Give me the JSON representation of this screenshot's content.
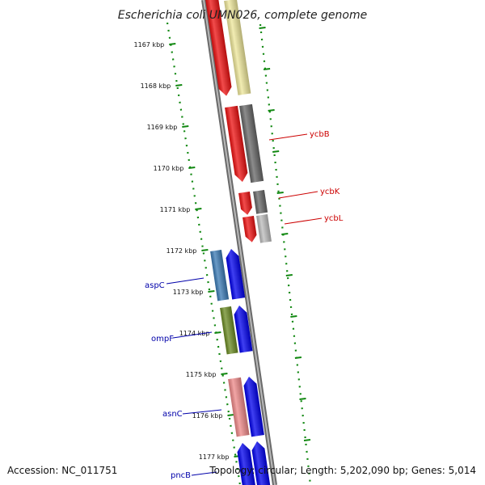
{
  "title": "Escherichia coli UMN026, complete genome",
  "footer": {
    "accession": "Accession: NC_011751",
    "topology": "Topology: circular; Length: 5,202,090 bp; Genes: 5,014"
  },
  "ticks": [
    "1167 kbp",
    "1168 kbp",
    "1169 kbp",
    "1170 kbp",
    "1171 kbp",
    "1172 kbp",
    "1173 kbp",
    "1174 kbp",
    "1175 kbp",
    "1176 kbp",
    "1177 kbp"
  ],
  "genes_right": [
    {
      "name": "ycbB",
      "color": "#cc0000"
    },
    {
      "name": "ycbK",
      "color": "#cc0000"
    },
    {
      "name": "ycbL",
      "color": "#cc0000"
    }
  ],
  "genes_left": [
    {
      "name": "aspC",
      "color": "#0000aa"
    },
    {
      "name": "ompF",
      "color": "#0000aa"
    },
    {
      "name": "asnC",
      "color": "#0000aa"
    },
    {
      "name": "pncB",
      "color": "#0000aa"
    }
  ],
  "colors": {
    "tick_line": "#118811",
    "backbone": "#888888",
    "red_gene": "#ee1111",
    "blue_gene": "#0000ee",
    "grey_gene": "#666666",
    "light_grey_gene": "#bbbbbb",
    "yellow_gene": "#eee79a",
    "steel_blue_gene": "#3a7ab5",
    "olive_gene": "#6a8a22",
    "pink_gene": "#ee8888"
  }
}
